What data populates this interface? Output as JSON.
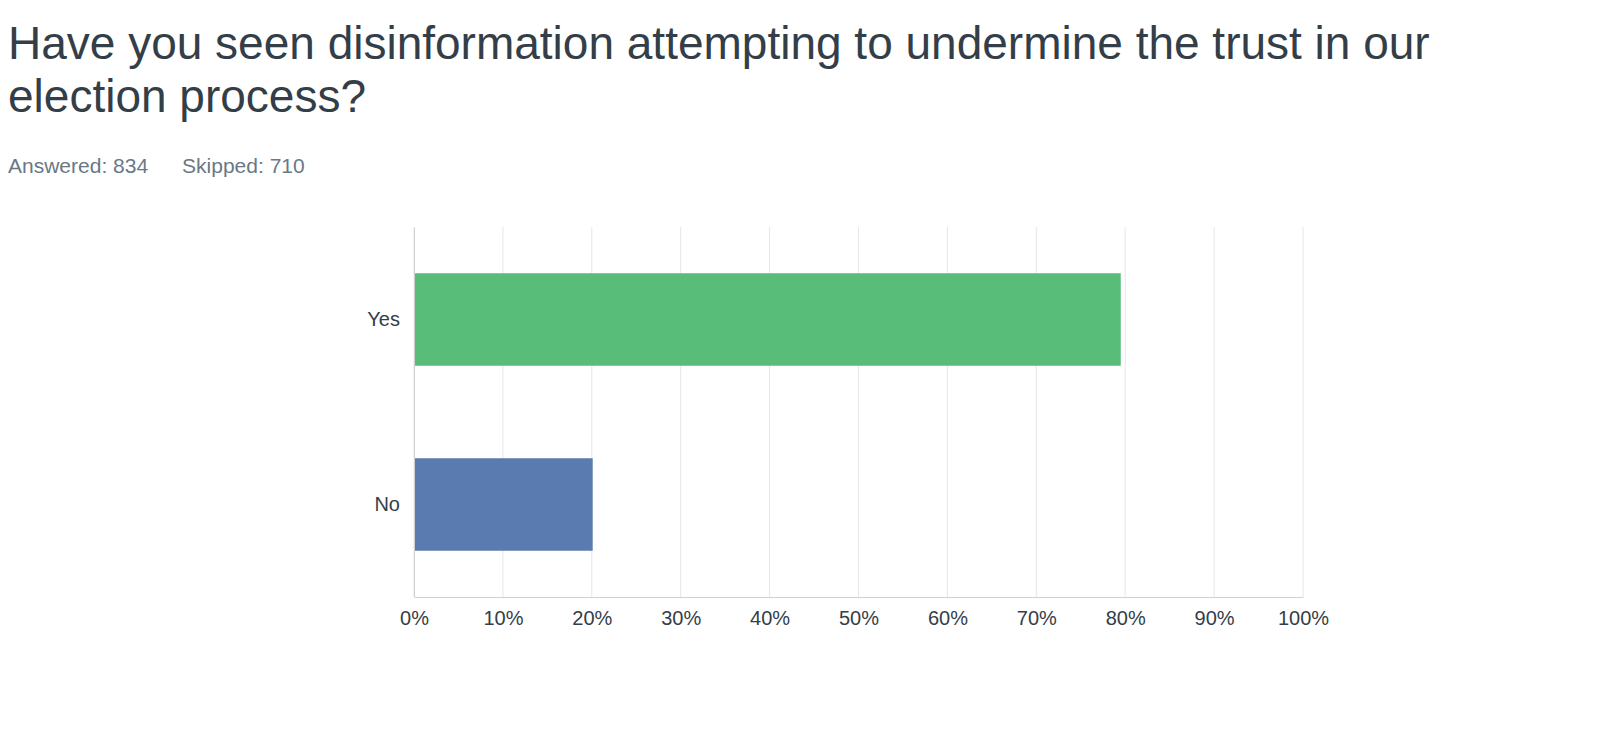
{
  "chart_data": {
    "type": "bar",
    "orientation": "horizontal",
    "title": "Have you seen disinformation attempting to undermine the trust in our election process?",
    "annotations": [
      "Answered: 834",
      "Skipped: 710"
    ],
    "categories": [
      "Yes",
      "No"
    ],
    "values": [
      79.5,
      20.1
    ],
    "colors": [
      "#57bd78",
      "#5a7bb0"
    ],
    "xlim": [
      0,
      100
    ],
    "xticks": [
      {
        "value": 0,
        "label": "0%"
      },
      {
        "value": 10,
        "label": "10%"
      },
      {
        "value": 20,
        "label": "20%"
      },
      {
        "value": 30,
        "label": "30%"
      },
      {
        "value": 40,
        "label": "40%"
      },
      {
        "value": 50,
        "label": "50%"
      },
      {
        "value": 60,
        "label": "60%"
      },
      {
        "value": 70,
        "label": "70%"
      },
      {
        "value": 80,
        "label": "80%"
      },
      {
        "value": 90,
        "label": "90%"
      },
      {
        "value": 100,
        "label": "100%"
      }
    ],
    "grid": true
  }
}
